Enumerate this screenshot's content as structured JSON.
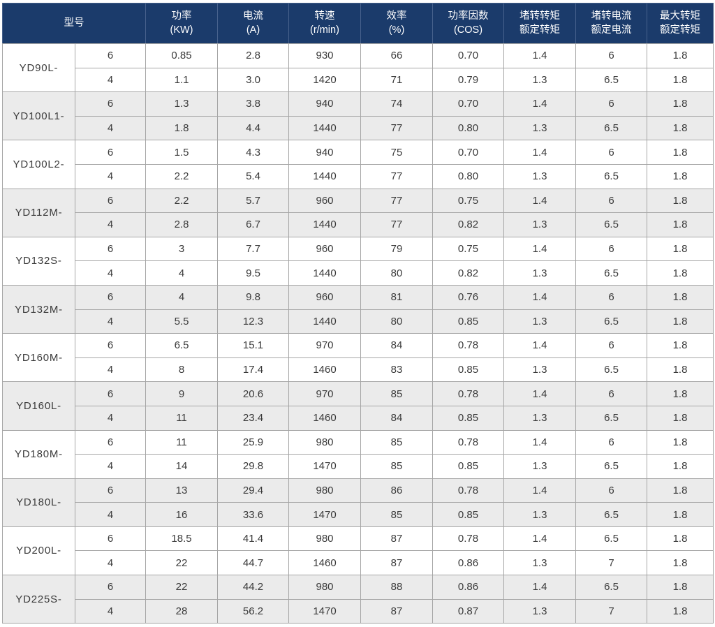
{
  "colors": {
    "header_bg": "#1b3b6b",
    "header_text": "#ffffff",
    "row_bg": "#ffffff",
    "row_alt_bg": "#ebebeb",
    "border": "#a6a6a6",
    "cell_text": "#3a3a3a"
  },
  "table": {
    "headers": [
      {
        "id": "model",
        "label": "型号",
        "sub": ""
      },
      {
        "id": "power",
        "label": "功率",
        "sub": "(KW)"
      },
      {
        "id": "current",
        "label": "电流",
        "sub": "(A)"
      },
      {
        "id": "speed",
        "label": "转速",
        "sub": "(r/min)"
      },
      {
        "id": "efficiency",
        "label": "效率",
        "sub": "(%)"
      },
      {
        "id": "power-factor",
        "label": "功率因数",
        "sub": "(COS)"
      },
      {
        "id": "locked-torque-ratio",
        "label": "堵转转矩",
        "sub": "额定转矩"
      },
      {
        "id": "locked-current-ratio",
        "label": "堵转电流",
        "sub": "额定电流"
      },
      {
        "id": "max-torque-ratio",
        "label": "最大转矩",
        "sub": "额定转矩"
      }
    ],
    "groups": [
      {
        "model": "YD90L-",
        "rows": [
          [
            "6",
            "0.85",
            "2.8",
            "930",
            "66",
            "0.70",
            "1.4",
            "6",
            "1.8"
          ],
          [
            "4",
            "1.1",
            "3.0",
            "1420",
            "71",
            "0.79",
            "1.3",
            "6.5",
            "1.8"
          ]
        ]
      },
      {
        "model": "YD100L1-",
        "rows": [
          [
            "6",
            "1.3",
            "3.8",
            "940",
            "74",
            "0.70",
            "1.4",
            "6",
            "1.8"
          ],
          [
            "4",
            "1.8",
            "4.4",
            "1440",
            "77",
            "0.80",
            "1.3",
            "6.5",
            "1.8"
          ]
        ]
      },
      {
        "model": "YD100L2-",
        "rows": [
          [
            "6",
            "1.5",
            "4.3",
            "940",
            "75",
            "0.70",
            "1.4",
            "6",
            "1.8"
          ],
          [
            "4",
            "2.2",
            "5.4",
            "1440",
            "77",
            "0.80",
            "1.3",
            "6.5",
            "1.8"
          ]
        ]
      },
      {
        "model": "YD112M-",
        "rows": [
          [
            "6",
            "2.2",
            "5.7",
            "960",
            "77",
            "0.75",
            "1.4",
            "6",
            "1.8"
          ],
          [
            "4",
            "2.8",
            "6.7",
            "1440",
            "77",
            "0.82",
            "1.3",
            "6.5",
            "1.8"
          ]
        ]
      },
      {
        "model": "YD132S-",
        "rows": [
          [
            "6",
            "3",
            "7.7",
            "960",
            "79",
            "0.75",
            "1.4",
            "6",
            "1.8"
          ],
          [
            "4",
            "4",
            "9.5",
            "1440",
            "80",
            "0.82",
            "1.3",
            "6.5",
            "1.8"
          ]
        ]
      },
      {
        "model": "YD132M-",
        "rows": [
          [
            "6",
            "4",
            "9.8",
            "960",
            "81",
            "0.76",
            "1.4",
            "6",
            "1.8"
          ],
          [
            "4",
            "5.5",
            "12.3",
            "1440",
            "80",
            "0.85",
            "1.3",
            "6.5",
            "1.8"
          ]
        ]
      },
      {
        "model": "YD160M-",
        "rows": [
          [
            "6",
            "6.5",
            "15.1",
            "970",
            "84",
            "0.78",
            "1.4",
            "6",
            "1.8"
          ],
          [
            "4",
            "8",
            "17.4",
            "1460",
            "83",
            "0.85",
            "1.3",
            "6.5",
            "1.8"
          ]
        ]
      },
      {
        "model": "YD160L-",
        "rows": [
          [
            "6",
            "9",
            "20.6",
            "970",
            "85",
            "0.78",
            "1.4",
            "6",
            "1.8"
          ],
          [
            "4",
            "11",
            "23.4",
            "1460",
            "84",
            "0.85",
            "1.3",
            "6.5",
            "1.8"
          ]
        ]
      },
      {
        "model": "YD180M-",
        "rows": [
          [
            "6",
            "11",
            "25.9",
            "980",
            "85",
            "0.78",
            "1.4",
            "6",
            "1.8"
          ],
          [
            "4",
            "14",
            "29.8",
            "1470",
            "85",
            "0.85",
            "1.3",
            "6.5",
            "1.8"
          ]
        ]
      },
      {
        "model": "YD180L-",
        "rows": [
          [
            "6",
            "13",
            "29.4",
            "980",
            "86",
            "0.78",
            "1.4",
            "6",
            "1.8"
          ],
          [
            "4",
            "16",
            "33.6",
            "1470",
            "85",
            "0.85",
            "1.3",
            "6.5",
            "1.8"
          ]
        ]
      },
      {
        "model": "YD200L-",
        "rows": [
          [
            "6",
            "18.5",
            "41.4",
            "980",
            "87",
            "0.78",
            "1.4",
            "6.5",
            "1.8"
          ],
          [
            "4",
            "22",
            "44.7",
            "1460",
            "87",
            "0.86",
            "1.3",
            "7",
            "1.8"
          ]
        ]
      },
      {
        "model": "YD225S-",
        "rows": [
          [
            "6",
            "22",
            "44.2",
            "980",
            "88",
            "0.86",
            "1.4",
            "6.5",
            "1.8"
          ],
          [
            "4",
            "28",
            "56.2",
            "1470",
            "87",
            "0.87",
            "1.3",
            "7",
            "1.8"
          ]
        ]
      }
    ]
  }
}
